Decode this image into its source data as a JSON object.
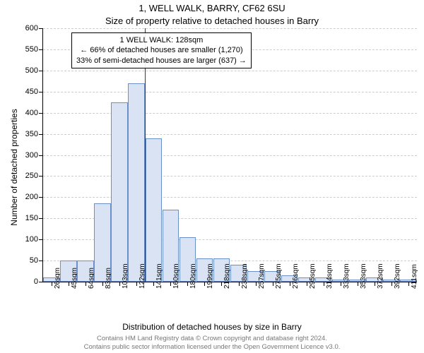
{
  "chart": {
    "type": "histogram",
    "title_line1": "1, WELL WALK, BARRY, CF62 6SU",
    "title_line2": "Size of property relative to detached houses in Barry",
    "title_fontsize": 13,
    "ylabel": "Number of detached properties",
    "xlabel": "Distribution of detached houses by size in Barry",
    "label_fontsize": 12,
    "ylim": [
      0,
      600
    ],
    "ytick_step": 50,
    "xticks": [
      "26sqm",
      "45sqm",
      "64sqm",
      "83sqm",
      "103sqm",
      "122sqm",
      "141sqm",
      "160sqm",
      "180sqm",
      "199sqm",
      "218sqm",
      "238sqm",
      "257sqm",
      "275sqm",
      "276sqm",
      "295sqm",
      "314sqm",
      "333sqm",
      "353sqm",
      "372sqm",
      "392sqm",
      "411sqm"
    ],
    "values": [
      10,
      50,
      50,
      185,
      425,
      470,
      340,
      170,
      105,
      55,
      55,
      40,
      25,
      25,
      15,
      10,
      10,
      5,
      5,
      10,
      5,
      5
    ],
    "bar_fill": "#d9e3f3",
    "bar_border": "#6b8fc7",
    "bar_border_width": 1,
    "background_color": "#ffffff",
    "grid_color": "#cccccc",
    "axis_color": "#000000",
    "tick_fontsize": 11,
    "xtick_fontsize": 10,
    "marker": {
      "value_label": "128sqm",
      "position_index": 5.5,
      "color": "#cc0000",
      "width": 1.5
    },
    "annotation": {
      "line1": "1 WELL WALK: 128sqm",
      "line2": "← 66% of detached houses are smaller (1,270)",
      "line3": "33% of semi-detached houses are larger (637) →",
      "border_color": "#000000",
      "bg_color": "#ffffff",
      "fontsize": 11
    }
  },
  "credit": {
    "line1": "Contains HM Land Registry data © Crown copyright and database right 2024.",
    "line2": "Contains public sector information licensed under the Open Government Licence v3.0.",
    "color": "#777777",
    "fontsize": 9.5
  }
}
